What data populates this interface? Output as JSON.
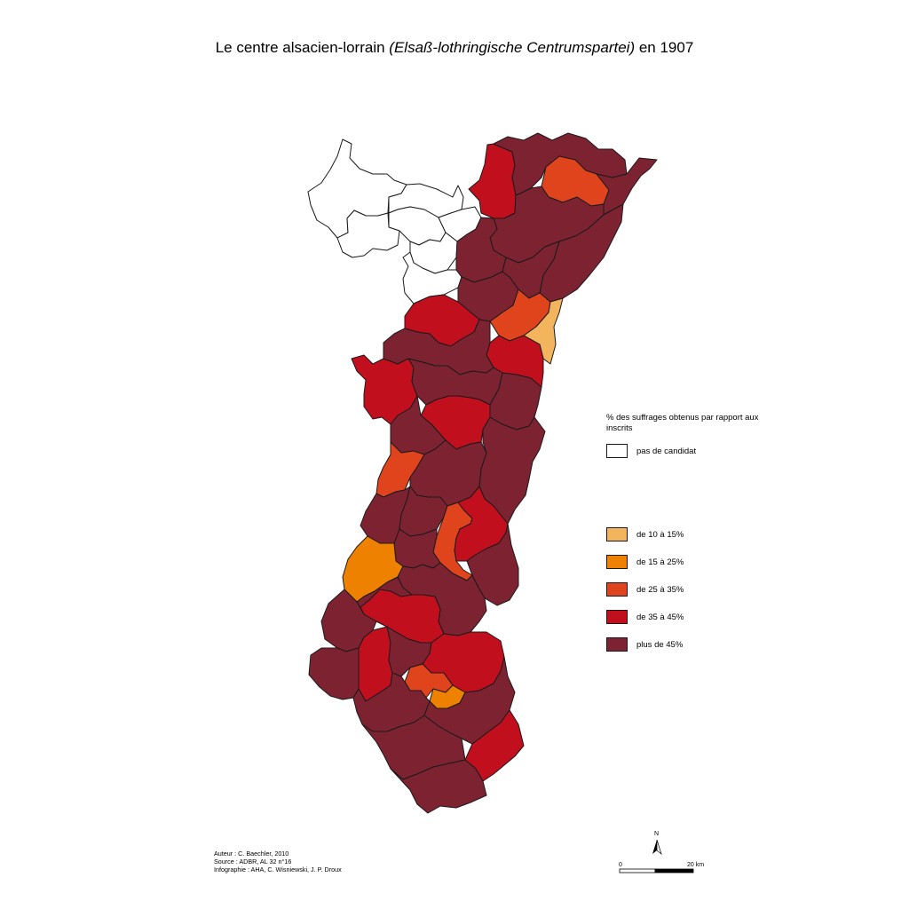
{
  "title": {
    "main": "Le centre alsacien-lorrain ",
    "italic": "(Elsaß-lothringische Centrumspartei)",
    "year": " en 1907"
  },
  "legend": {
    "title": "% des suffrages obtenus par rapport aux inscrits",
    "items": [
      {
        "label": "pas de candidat",
        "color": "#ffffff"
      },
      {
        "label": "de 10 à 15%",
        "color": "#f2b45c"
      },
      {
        "label": "de 15 à 25%",
        "color": "#ee8100"
      },
      {
        "label": "de 25 à 35%",
        "color": "#e0441c"
      },
      {
        "label": "de 35 à 45%",
        "color": "#c20f1e"
      },
      {
        "label": "plus de 45%",
        "color": "#7d2231"
      }
    ]
  },
  "credits": {
    "author": "Auteur : C. Baechler, 2010",
    "source": "Source : ADBR, AL 32 n°16",
    "infographics": "Infographie : AHA, C. Wisniewski, J. P. Droux"
  },
  "scale": {
    "north": "N",
    "start": "0",
    "end": "20 km"
  }
}
